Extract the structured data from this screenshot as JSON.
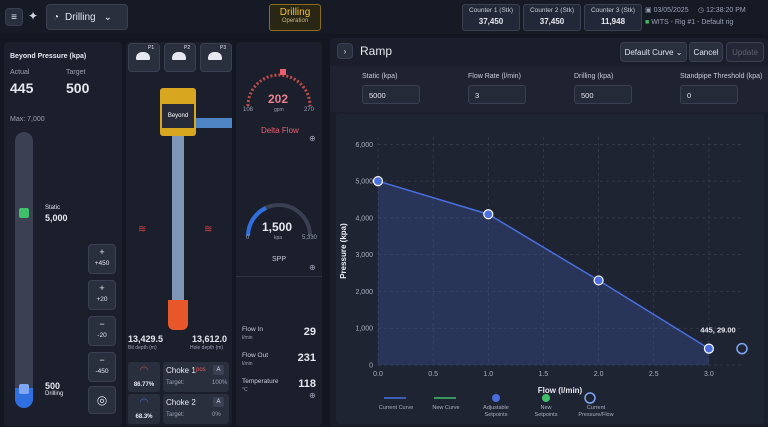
{
  "topbar": {
    "mode": "Drilling",
    "status": {
      "title": "Drilling",
      "subtitle": "Operation"
    },
    "counters": [
      {
        "label": "Counter 1 (Stk)",
        "value": "37,450"
      },
      {
        "label": "Counter 2 (Stk)",
        "value": "37,450"
      },
      {
        "label": "Counter 3 (Stk)",
        "value": "11,948"
      }
    ],
    "date": "03/05/2025",
    "time": "12:38:20 PM",
    "rig": "WITS - Rig #1 - Default rig"
  },
  "pressure_panel": {
    "title": "Beyond Pressure (kpa)",
    "actual_label": "Actual",
    "actual": "445",
    "target_label": "Target",
    "target": "500",
    "max": "Max: 7,000",
    "static_label": "Static",
    "static_value": "5,000",
    "drilling_value": "500",
    "drilling_label": "Drilling",
    "buttons": [
      "+450",
      "+20",
      "-20",
      "-450"
    ]
  },
  "well": {
    "pumps": [
      "P1",
      "P2",
      "P3"
    ],
    "logo": "Beyond",
    "bit_depth": "13,429.5",
    "bit_depth_label": "Bit depth (m)",
    "hole_depth": "13,612.0",
    "hole_depth_label": "Hole depth (m)",
    "chokes": [
      {
        "gauge": "86.77%",
        "name": "Choke 1",
        "tag": "pos",
        "mode": "A",
        "target_label": "Target:",
        "target": "100%"
      },
      {
        "gauge": "68.3%",
        "name": "Choke 2",
        "mode": "A",
        "target_label": "Target:",
        "target": "0%"
      }
    ]
  },
  "gauges": {
    "delta_flow": {
      "value": "202",
      "unit": "gpm",
      "min": "108",
      "max": "270",
      "label": "Delta Flow"
    },
    "spp": {
      "value": "1,500",
      "unit": "kpa",
      "min": "0",
      "max": "5,330",
      "label": "SPP"
    }
  },
  "readings": [
    {
      "label": "Flow In",
      "unit": "l/min",
      "value": "29"
    },
    {
      "label": "Flow Out",
      "unit": "l/min",
      "value": "231"
    },
    {
      "label": "Temperature",
      "unit": "°C",
      "value": "118"
    }
  ],
  "ramp": {
    "title": "Ramp",
    "curve_select": "Default Curve",
    "cancel": "Cancel",
    "update": "Update",
    "fields": [
      {
        "label": "Static (kpa)",
        "value": "5000"
      },
      {
        "label": "Flow Rate (l/min)",
        "value": "3"
      },
      {
        "label": "Drilling (kpa)",
        "value": "500"
      },
      {
        "label": "Standpipe Threshold (kpa)",
        "value": "0"
      }
    ]
  },
  "chart_data": {
    "type": "line",
    "xlabel": "Flow (l/min)",
    "ylabel": "Pressure (kpa)",
    "x": [
      0,
      1,
      2,
      3
    ],
    "series": [
      {
        "name": "Current Curve",
        "color": "#4a6ee0",
        "values": [
          5000,
          4100,
          2300,
          445
        ]
      }
    ],
    "new_curve": {
      "name": "New Curve",
      "color": "#3fbf6a"
    },
    "adjustable_setpoints": {
      "name": "Adjustable Setpoints",
      "color": "#4a6ee0"
    },
    "new_setpoints": {
      "name": "New Setpoints",
      "color": "#3fbf6a"
    },
    "current_point": {
      "name": "Current Pressure/Flow",
      "x": 3.3,
      "y": 445,
      "label": "445, 29.00"
    },
    "xlim": [
      0,
      3.3
    ],
    "ylim": [
      0,
      6200
    ],
    "xticks": [
      {
        "value": 0,
        "label": "0.0"
      },
      0.5,
      {
        "value": 1,
        "label": "1.0"
      },
      1.5,
      {
        "value": 2,
        "label": "2.0"
      },
      2.5,
      {
        "value": 3,
        "label": "3.0"
      }
    ],
    "yticks": [
      0,
      {
        "value": 1000,
        "label": "1,000"
      },
      {
        "value": 2000,
        "label": "2,000"
      },
      {
        "value": 3000,
        "label": "3,000"
      },
      {
        "value": 4000,
        "label": "4,000"
      },
      {
        "value": 5000,
        "label": "5,000"
      },
      {
        "value": 6000,
        "label": "6,000"
      }
    ],
    "grid": true
  }
}
